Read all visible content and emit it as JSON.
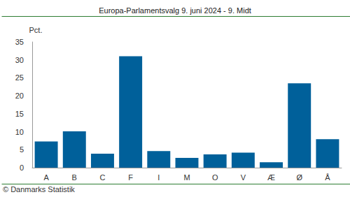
{
  "chart_data": {
    "type": "bar",
    "title": "Europa-Parlamentsvalg 9. juni 2024 - 9. Midt",
    "ylabel": "Pct.",
    "source": "© Danmarks Statistik",
    "categories": [
      "A",
      "B",
      "C",
      "F",
      "I",
      "M",
      "O",
      "V",
      "Æ",
      "Ø",
      "Å"
    ],
    "values": [
      7.3,
      10.1,
      3.9,
      31.0,
      4.6,
      2.7,
      3.7,
      4.2,
      1.5,
      23.5,
      7.9
    ],
    "color": "#00609a",
    "ylim": [
      0,
      35
    ],
    "yticks": [
      0,
      5,
      10,
      15,
      20,
      25,
      30,
      35
    ],
    "grid": false
  }
}
